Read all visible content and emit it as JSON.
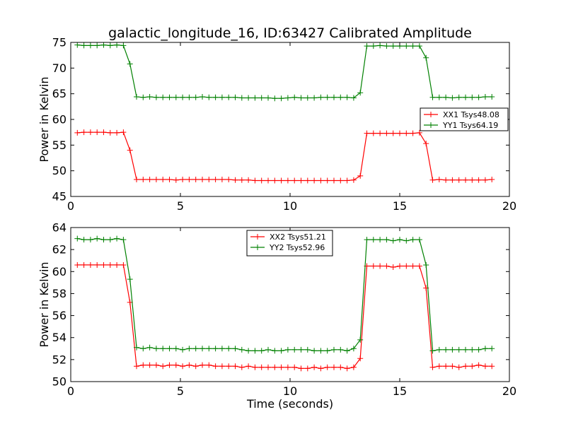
{
  "figure": {
    "title": "galactic_longitude_16, ID:63427 Calibrated Amplitude"
  },
  "chart_data": [
    {
      "type": "line",
      "title": "galactic_longitude_16, ID:63427 Calibrated Amplitude",
      "xlabel": "",
      "ylabel": "Power in Kelvin",
      "xlim": [
        0,
        20
      ],
      "ylim": [
        45,
        75
      ],
      "xticks": [
        "0",
        "5",
        "10",
        "15",
        "20"
      ],
      "yticks": [
        "45",
        "50",
        "55",
        "60",
        "65",
        "70",
        "75"
      ],
      "grid": false,
      "legend_position": "right",
      "x": [
        0.3,
        0.6,
        0.9,
        1.2,
        1.5,
        1.8,
        2.1,
        2.4,
        2.7,
        3.0,
        3.3,
        3.6,
        3.9,
        4.2,
        4.5,
        4.8,
        5.1,
        5.4,
        5.7,
        6.0,
        6.3,
        6.6,
        6.9,
        7.2,
        7.5,
        7.8,
        8.1,
        8.4,
        8.7,
        9.0,
        9.3,
        9.6,
        9.9,
        10.2,
        10.5,
        10.8,
        11.1,
        11.4,
        11.7,
        12.0,
        12.3,
        12.6,
        12.9,
        13.2,
        13.5,
        13.8,
        14.1,
        14.4,
        14.7,
        15.0,
        15.3,
        15.6,
        15.9,
        16.2,
        16.5,
        16.8,
        17.1,
        17.4,
        17.7,
        18.0,
        18.3,
        18.6,
        18.9,
        19.2
      ],
      "series": [
        {
          "name": "XX1 Tsys48.08",
          "color": "#ff0000",
          "values": [
            57.4,
            57.5,
            57.5,
            57.5,
            57.5,
            57.4,
            57.4,
            57.5,
            54.0,
            48.3,
            48.3,
            48.3,
            48.3,
            48.3,
            48.3,
            48.2,
            48.3,
            48.3,
            48.3,
            48.3,
            48.3,
            48.3,
            48.3,
            48.3,
            48.2,
            48.2,
            48.2,
            48.1,
            48.1,
            48.1,
            48.1,
            48.1,
            48.1,
            48.1,
            48.1,
            48.1,
            48.1,
            48.1,
            48.1,
            48.1,
            48.1,
            48.1,
            48.2,
            49.0,
            57.3,
            57.3,
            57.3,
            57.3,
            57.3,
            57.3,
            57.3,
            57.3,
            57.4,
            55.3,
            48.2,
            48.3,
            48.2,
            48.2,
            48.2,
            48.2,
            48.2,
            48.2,
            48.2,
            48.3
          ]
        },
        {
          "name": "YY1 Tsys64.19",
          "color": "#008000",
          "values": [
            74.5,
            74.4,
            74.4,
            74.4,
            74.5,
            74.4,
            74.5,
            74.4,
            70.8,
            64.4,
            64.3,
            64.4,
            64.3,
            64.3,
            64.3,
            64.3,
            64.3,
            64.3,
            64.3,
            64.4,
            64.3,
            64.3,
            64.3,
            64.3,
            64.3,
            64.2,
            64.2,
            64.2,
            64.2,
            64.2,
            64.1,
            64.1,
            64.2,
            64.3,
            64.2,
            64.2,
            64.2,
            64.3,
            64.3,
            64.3,
            64.3,
            64.3,
            64.2,
            65.2,
            74.3,
            74.3,
            74.4,
            74.3,
            74.3,
            74.3,
            74.3,
            74.3,
            74.3,
            72.0,
            64.3,
            64.3,
            64.3,
            64.2,
            64.3,
            64.3,
            64.3,
            64.3,
            64.4,
            64.4
          ]
        }
      ]
    },
    {
      "type": "line",
      "title": "",
      "xlabel": "Time (seconds)",
      "ylabel": "Power in Kelvin",
      "xlim": [
        0,
        20
      ],
      "ylim": [
        50,
        64
      ],
      "xticks": [
        "0",
        "5",
        "10",
        "15",
        "20"
      ],
      "yticks": [
        "50",
        "52",
        "54",
        "56",
        "58",
        "60",
        "62",
        "64"
      ],
      "grid": false,
      "legend_position": "top-center",
      "x": [
        0.3,
        0.6,
        0.9,
        1.2,
        1.5,
        1.8,
        2.1,
        2.4,
        2.7,
        3.0,
        3.3,
        3.6,
        3.9,
        4.2,
        4.5,
        4.8,
        5.1,
        5.4,
        5.7,
        6.0,
        6.3,
        6.6,
        6.9,
        7.2,
        7.5,
        7.8,
        8.1,
        8.4,
        8.7,
        9.0,
        9.3,
        9.6,
        9.9,
        10.2,
        10.5,
        10.8,
        11.1,
        11.4,
        11.7,
        12.0,
        12.3,
        12.6,
        12.9,
        13.2,
        13.5,
        13.8,
        14.1,
        14.4,
        14.7,
        15.0,
        15.3,
        15.6,
        15.9,
        16.2,
        16.5,
        16.8,
        17.1,
        17.4,
        17.7,
        18.0,
        18.3,
        18.6,
        18.9,
        19.2
      ],
      "series": [
        {
          "name": "XX2 Tsys51.21",
          "color": "#ff0000",
          "values": [
            60.6,
            60.6,
            60.6,
            60.6,
            60.6,
            60.6,
            60.6,
            60.6,
            57.2,
            51.4,
            51.5,
            51.5,
            51.5,
            51.4,
            51.5,
            51.5,
            51.4,
            51.5,
            51.4,
            51.5,
            51.5,
            51.4,
            51.4,
            51.4,
            51.4,
            51.3,
            51.4,
            51.3,
            51.3,
            51.3,
            51.3,
            51.3,
            51.3,
            51.3,
            51.2,
            51.2,
            51.3,
            51.2,
            51.3,
            51.3,
            51.3,
            51.2,
            51.3,
            52.1,
            60.5,
            60.5,
            60.5,
            60.5,
            60.4,
            60.5,
            60.5,
            60.5,
            60.5,
            58.5,
            51.3,
            51.4,
            51.4,
            51.4,
            51.3,
            51.4,
            51.4,
            51.5,
            51.4,
            51.4
          ]
        },
        {
          "name": "YY2 Tsys52.96",
          "color": "#008000",
          "values": [
            63.0,
            62.9,
            62.9,
            63.0,
            62.9,
            62.9,
            63.0,
            62.9,
            59.3,
            53.1,
            53.0,
            53.1,
            53.0,
            53.0,
            53.0,
            53.0,
            52.9,
            53.0,
            53.0,
            53.0,
            53.0,
            53.0,
            53.0,
            53.0,
            53.0,
            52.9,
            52.8,
            52.8,
            52.8,
            52.9,
            52.8,
            52.8,
            52.9,
            52.9,
            52.9,
            52.9,
            52.8,
            52.8,
            52.8,
            52.9,
            52.9,
            52.8,
            53.0,
            53.8,
            62.9,
            62.9,
            62.9,
            62.9,
            62.8,
            62.9,
            62.8,
            62.9,
            62.9,
            60.6,
            52.8,
            52.9,
            52.9,
            52.9,
            52.9,
            52.9,
            52.9,
            52.9,
            53.0,
            53.0
          ]
        }
      ]
    }
  ]
}
